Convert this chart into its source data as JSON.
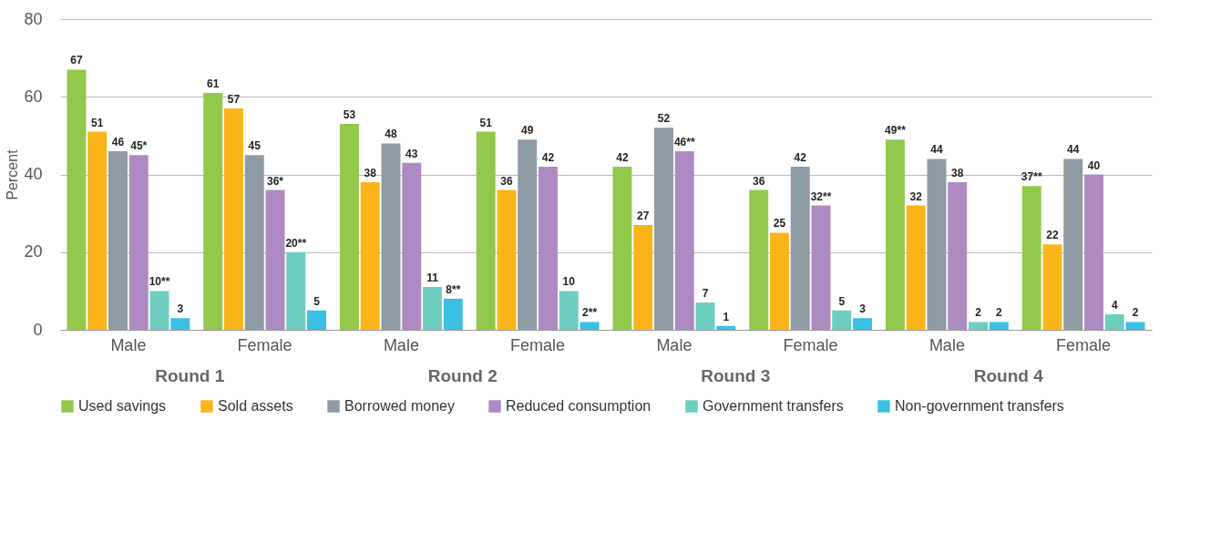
{
  "chart_data": {
    "type": "bar",
    "ylabel": "Percent",
    "categories": [
      "Male",
      "Female",
      "Male",
      "Female",
      "Male",
      "Female",
      "Male",
      "Female"
    ],
    "annotations": [
      "Round 1",
      "Round 2",
      "Round 3",
      "Round 4"
    ],
    "series": [
      {
        "name": "Used savings",
        "color": "#92c84c",
        "values": [
          67,
          61,
          53,
          51,
          42,
          36,
          49,
          37
        ],
        "value_labels": [
          "67",
          "61",
          "53",
          "51",
          "42",
          "36",
          "49**",
          "37**"
        ]
      },
      {
        "name": "Sold assets",
        "color": "#fbb51a",
        "values": [
          51,
          57,
          38,
          36,
          27,
          25,
          32,
          22
        ],
        "value_labels": [
          "51",
          "57",
          "38",
          "36",
          "27",
          "25",
          "32",
          "22"
        ]
      },
      {
        "name": "Borrowed money",
        "color": "#8e9aa4",
        "values": [
          46,
          45,
          48,
          49,
          52,
          42,
          44,
          44
        ],
        "value_labels": [
          "46",
          "45",
          "48",
          "49",
          "52",
          "42",
          "44",
          "44"
        ]
      },
      {
        "name": "Reduced consumption",
        "color": "#ad8ac1",
        "values": [
          45,
          36,
          43,
          42,
          46,
          32,
          38,
          40
        ],
        "value_labels": [
          "45*",
          "36*",
          "43",
          "42",
          "46**",
          "32**",
          "38",
          "40"
        ]
      },
      {
        "name": "Government transfers",
        "color": "#6ecdc1",
        "values": [
          10,
          20,
          11,
          10,
          7,
          5,
          2,
          4
        ],
        "value_labels": [
          "10**",
          "20**",
          "11",
          "10",
          "7",
          "5",
          "2",
          "4"
        ]
      },
      {
        "name": "Non-government transfers",
        "color": "#3bbfe3",
        "values": [
          3,
          5,
          8,
          2,
          1,
          3,
          2,
          2
        ],
        "value_labels": [
          "3",
          "5",
          "8**",
          "2**",
          "1",
          "3",
          "2",
          "2"
        ]
      }
    ],
    "ylim": [
      0,
      80
    ],
    "yticks": [
      0,
      20,
      40,
      60,
      80
    ],
    "grid": "y",
    "legend": "bottom"
  }
}
